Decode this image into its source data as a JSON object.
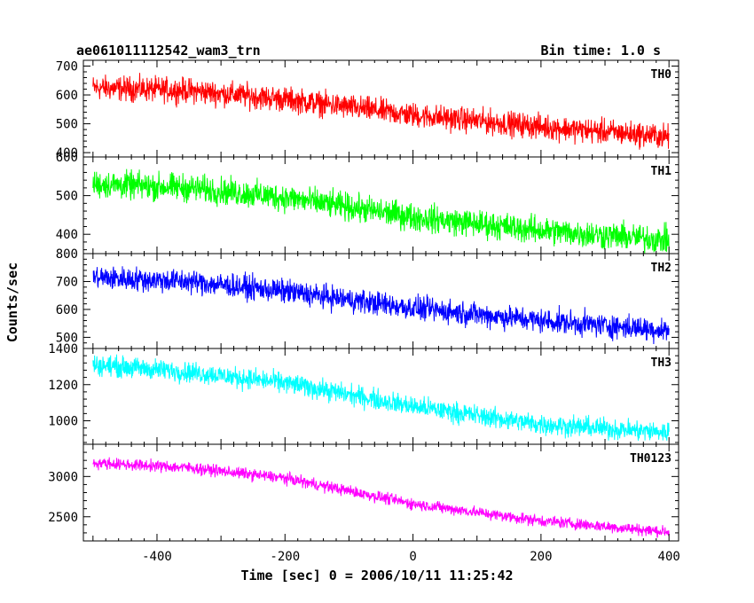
{
  "header": {
    "title": "ae061011112542_wam3_trn",
    "bin_time": "Bin time: 1.0 s"
  },
  "chart_data": {
    "type": "line",
    "xlabel": "Time [sec] 0 = 2006/10/11 11:25:42",
    "ylabel": "Counts/sec",
    "xlim": [
      -515,
      415
    ],
    "x_ticks": [
      -400,
      -200,
      0,
      200,
      400
    ],
    "panels": [
      {
        "name": "TH0",
        "color": "#ff0000",
        "ylim": [
          385,
          720
        ],
        "y_ticks": [
          400,
          500,
          600,
          700
        ],
        "trend": {
          "x": [
            -500,
            -350,
            -200,
            0,
            200,
            400
          ],
          "y": [
            625,
            615,
            585,
            530,
            490,
            455
          ]
        },
        "noise": 30
      },
      {
        "name": "TH1",
        "color": "#00ff00",
        "ylim": [
          350,
          600
        ],
        "y_ticks": [
          400,
          500,
          600
        ],
        "trend": {
          "x": [
            -500,
            -350,
            -200,
            0,
            200,
            400
          ],
          "y": [
            530,
            520,
            495,
            445,
            410,
            385
          ]
        },
        "noise": 25
      },
      {
        "name": "TH2",
        "color": "#0000ff",
        "ylim": [
          460,
          800
        ],
        "y_ticks": [
          500,
          600,
          700,
          800
        ],
        "trend": {
          "x": [
            -500,
            -350,
            -200,
            0,
            200,
            400
          ],
          "y": [
            715,
            700,
            665,
            605,
            560,
            525
          ]
        },
        "noise": 30
      },
      {
        "name": "TH3",
        "color": "#00ffff",
        "ylim": [
          870,
          1400
        ],
        "y_ticks": [
          1000,
          1200,
          1400
        ],
        "trend": {
          "x": [
            -500,
            -350,
            -200,
            0,
            200,
            400
          ],
          "y": [
            1310,
            1270,
            1210,
            1080,
            980,
            935
          ]
        },
        "noise": 40
      },
      {
        "name": "TH0123",
        "color": "#ff00ff",
        "ylim": [
          2200,
          3400
        ],
        "y_ticks": [
          2500,
          3000
        ],
        "trend": {
          "x": [
            -500,
            -350,
            -200,
            0,
            200,
            400
          ],
          "y": [
            3170,
            3110,
            2980,
            2660,
            2450,
            2310
          ]
        },
        "noise": 50
      }
    ]
  }
}
